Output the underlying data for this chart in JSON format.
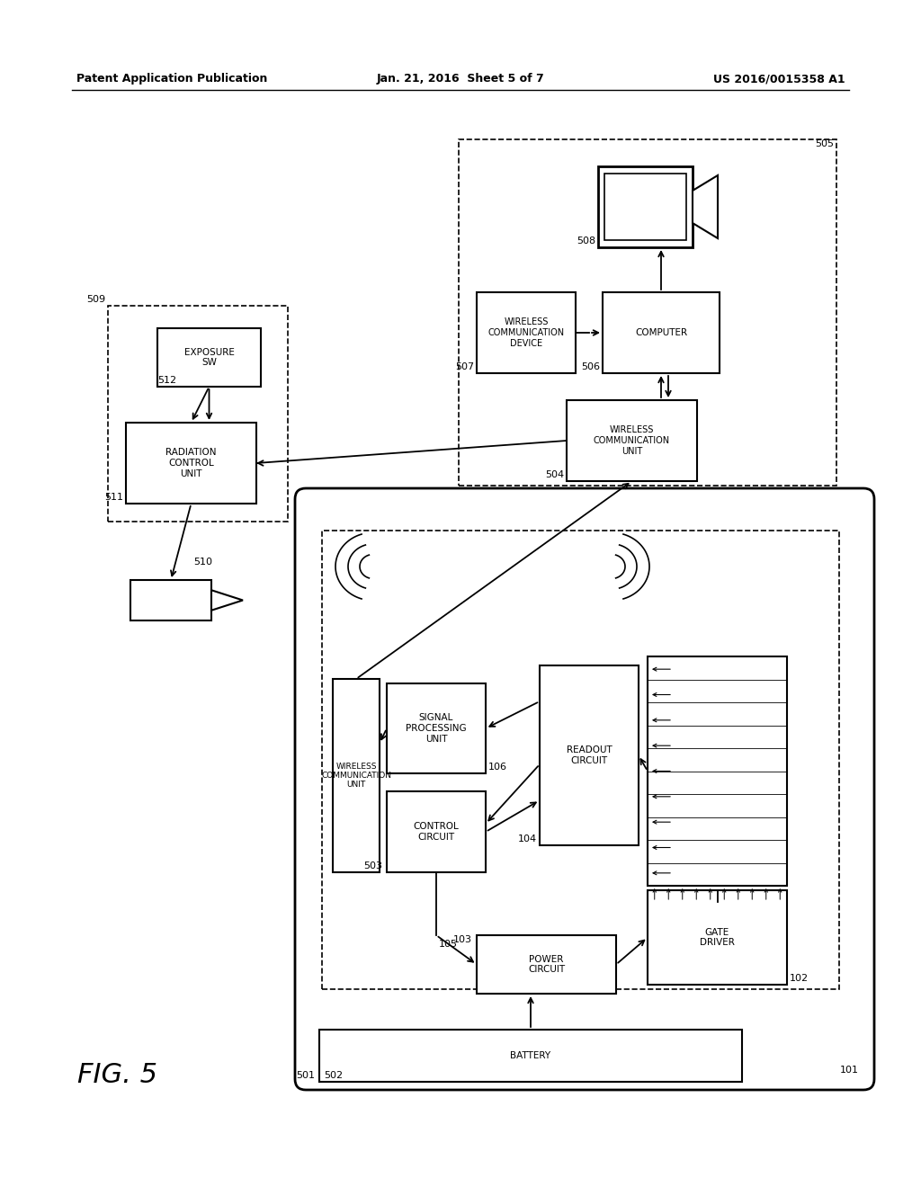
{
  "title_left": "Patent Application Publication",
  "title_mid": "Jan. 21, 2016  Sheet 5 of 7",
  "title_right": "US 2016/0015358 A1",
  "fig_label": "FIG. 5",
  "background_color": "#ffffff",
  "line_color": "#000000",
  "text_color": "#000000"
}
